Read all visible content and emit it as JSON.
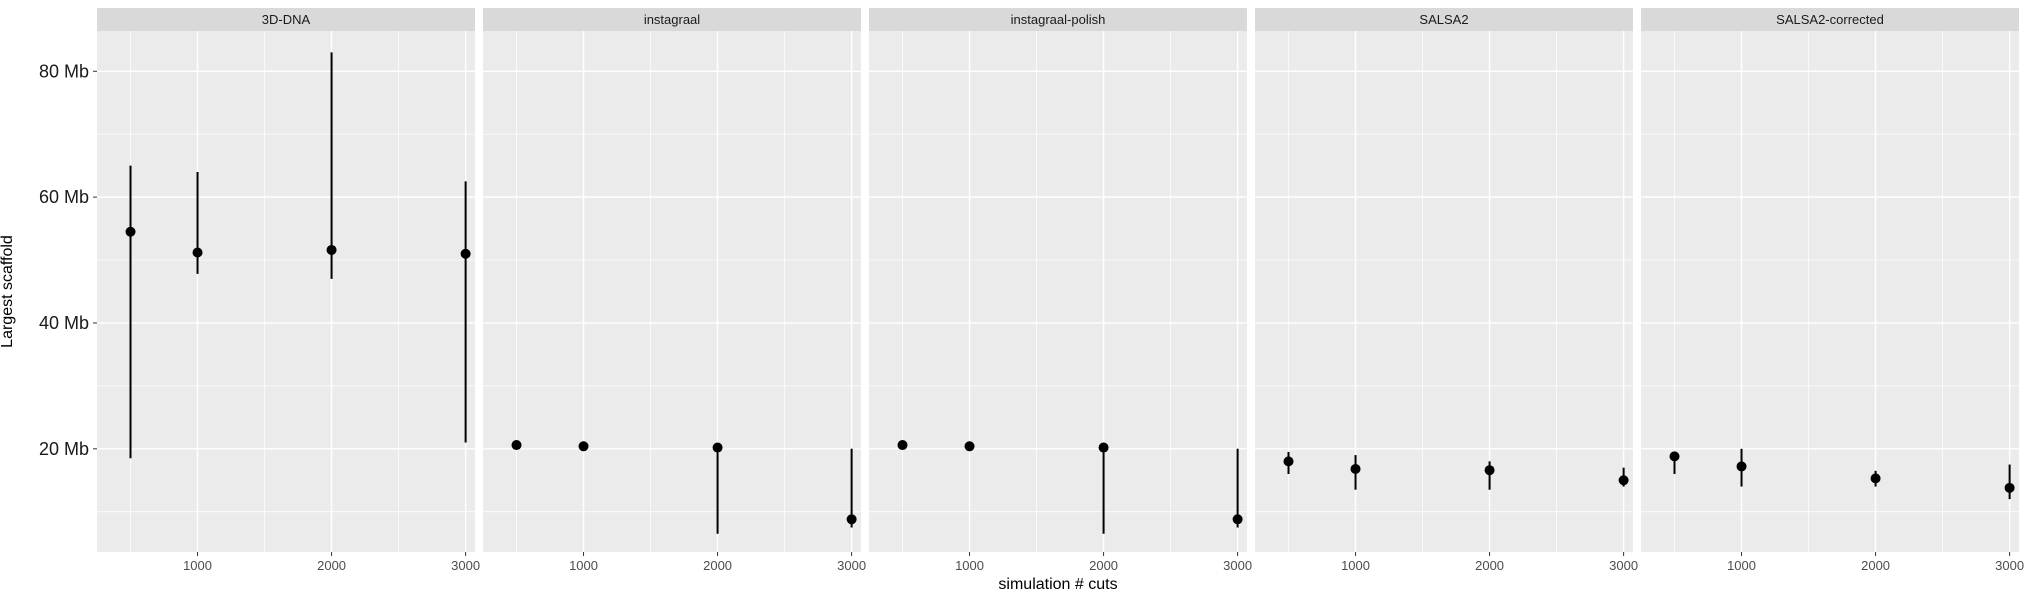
{
  "chart_data": {
    "type": "scatter",
    "style": "faceted point-range (mean with min–max error bars)",
    "xlabel": "simulation # cuts",
    "ylabel": "Largest scaffold",
    "x_ticks": [
      1000,
      2000,
      3000
    ],
    "x_lim": [
      250,
      3070
    ],
    "y_ticks": [
      20,
      40,
      60,
      80
    ],
    "y_tick_labels": [
      "20 Mb",
      "40 Mb",
      "60 Mb",
      "80 Mb"
    ],
    "y_lim": [
      3.6,
      86.4
    ],
    "grid": true,
    "legend": "none",
    "colors": {
      "panel_bg": "#ebebeb",
      "strip_bg": "#d9d9d9",
      "grid": "#ffffff",
      "mark": "#000000"
    },
    "facets": [
      {
        "name": "3D-DNA",
        "points": [
          {
            "x": 500,
            "y": 54.5,
            "ymin": 18.5,
            "ymax": 65.0
          },
          {
            "x": 1000,
            "y": 51.2,
            "ymin": 47.8,
            "ymax": 64.0
          },
          {
            "x": 2000,
            "y": 51.6,
            "ymin": 47.0,
            "ymax": 83.0
          },
          {
            "x": 3000,
            "y": 51.0,
            "ymin": 21.0,
            "ymax": 62.5
          }
        ]
      },
      {
        "name": "instagraal",
        "points": [
          {
            "x": 500,
            "y": 20.6,
            "ymin": 20.6,
            "ymax": 20.6
          },
          {
            "x": 1000,
            "y": 20.4,
            "ymin": 20.4,
            "ymax": 20.4
          },
          {
            "x": 2000,
            "y": 20.2,
            "ymin": 6.5,
            "ymax": 20.2
          },
          {
            "x": 3000,
            "y": 8.8,
            "ymin": 7.5,
            "ymax": 20.0
          }
        ]
      },
      {
        "name": "instagraal-polish",
        "points": [
          {
            "x": 500,
            "y": 20.6,
            "ymin": 20.6,
            "ymax": 20.6
          },
          {
            "x": 1000,
            "y": 20.4,
            "ymin": 20.4,
            "ymax": 20.4
          },
          {
            "x": 2000,
            "y": 20.2,
            "ymin": 6.5,
            "ymax": 20.2
          },
          {
            "x": 3000,
            "y": 8.8,
            "ymin": 7.5,
            "ymax": 20.0
          }
        ]
      },
      {
        "name": "SALSA2",
        "points": [
          {
            "x": 500,
            "y": 18.0,
            "ymin": 16.0,
            "ymax": 19.5
          },
          {
            "x": 1000,
            "y": 16.8,
            "ymin": 13.5,
            "ymax": 19.0
          },
          {
            "x": 2000,
            "y": 16.6,
            "ymin": 13.5,
            "ymax": 18.0
          },
          {
            "x": 3000,
            "y": 15.0,
            "ymin": 14.0,
            "ymax": 17.0
          }
        ]
      },
      {
        "name": "SALSA2-corrected",
        "points": [
          {
            "x": 500,
            "y": 18.8,
            "ymin": 16.0,
            "ymax": 19.2
          },
          {
            "x": 1000,
            "y": 17.2,
            "ymin": 14.0,
            "ymax": 20.0
          },
          {
            "x": 2000,
            "y": 15.3,
            "ymin": 14.0,
            "ymax": 16.5
          },
          {
            "x": 3000,
            "y": 13.8,
            "ymin": 12.0,
            "ymax": 17.5
          }
        ]
      }
    ]
  }
}
